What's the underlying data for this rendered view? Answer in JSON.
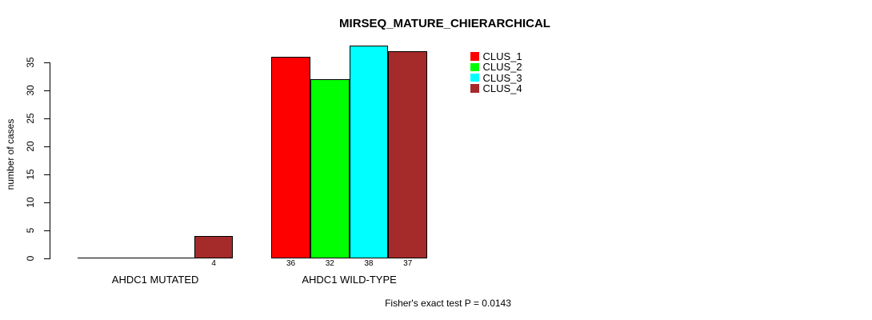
{
  "chart_data": {
    "type": "bar",
    "title": "MIRSEQ_MATURE_CHIERARCHICAL",
    "ylabel": "number of cases",
    "xlabel": "",
    "categories": [
      "AHDC1 MUTATED",
      "AHDC1 WILD-TYPE"
    ],
    "series": [
      {
        "name": "CLUS_1",
        "color": "#ff0000",
        "values": [
          0,
          36
        ]
      },
      {
        "name": "CLUS_2",
        "color": "#00ff00",
        "values": [
          0,
          32
        ]
      },
      {
        "name": "CLUS_3",
        "color": "#00ffff",
        "values": [
          0,
          38
        ]
      },
      {
        "name": "CLUS_4",
        "color": "#a52a2a",
        "values": [
          4,
          37
        ]
      }
    ],
    "bar_value_labels": [
      [
        null,
        null,
        null,
        "4"
      ],
      [
        "36",
        "32",
        "38",
        "37"
      ]
    ],
    "yticks": [
      "0",
      "5",
      "10",
      "15",
      "20",
      "25",
      "30",
      "35"
    ],
    "ylim": [
      0,
      38
    ],
    "grid": false,
    "legend_position": "top-right",
    "annotation": "Fisher's exact test P = 0.0143",
    "axis_color": "#000000",
    "background_color": "#ffffff"
  }
}
